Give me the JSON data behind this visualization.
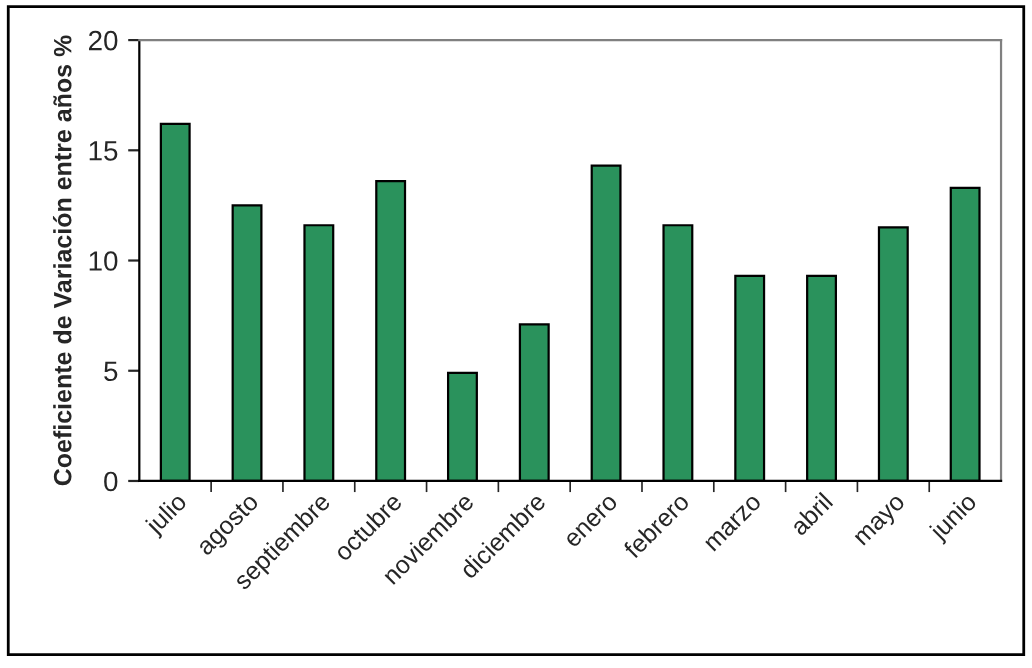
{
  "chart_data": {
    "type": "bar",
    "ylabel": "Coeficiente de Variación entre años %",
    "categories": [
      "julio",
      "agosto",
      "septiembre",
      "octubre",
      "noviembre",
      "diciembre",
      "enero",
      "febrero",
      "marzo",
      "abril",
      "mayo",
      "junio"
    ],
    "values": [
      16.2,
      12.5,
      11.6,
      13.6,
      4.9,
      7.1,
      14.3,
      11.6,
      9.3,
      9.3,
      11.5,
      13.3
    ],
    "color": "#2a925c",
    "ylim": [
      0,
      20
    ],
    "yticks": [
      0,
      5,
      10,
      15,
      20
    ],
    "grid": false
  }
}
